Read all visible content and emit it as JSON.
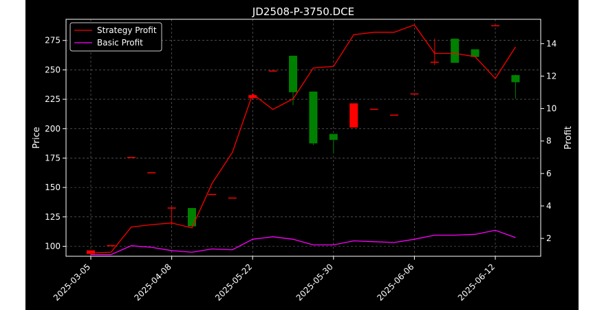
{
  "chart_data": {
    "type": "candlestick",
    "title": "JD2508-P-3750.DCE",
    "ylabel_left": "Price",
    "ylabel_right": "Profit",
    "ylim_left": [
      91.5,
      293
    ],
    "ylim_right": [
      0.9,
      15.5
    ],
    "yticks_left": [
      "100",
      "125",
      "150",
      "175",
      "200",
      "225",
      "250",
      "275"
    ],
    "yticks_right": [
      "2",
      "4",
      "6",
      "8",
      "10",
      "12",
      "14"
    ],
    "xtick_labels": [
      "2025-03-05",
      "2025-04-08",
      "2025-05-22",
      "2025-05-30",
      "2025-06-06",
      "2025-06-12"
    ],
    "xtick_index": [
      0,
      4,
      8,
      12,
      16,
      20
    ],
    "grid": true,
    "legend_position": "top-left",
    "colors": {
      "background": "#000000",
      "up": "#ff0000",
      "down": "#008000",
      "strategy": "#ff0000",
      "basic": "#ff00ff",
      "axes": "#ffffff"
    },
    "candles": [
      {
        "open": 93.5,
        "close": 96.5,
        "low": 92.5,
        "high": 96.5
      },
      {
        "open": 100.5,
        "close": 100.5,
        "low": 100.5,
        "high": 100.5
      },
      {
        "open": 175.5,
        "close": 175.5,
        "low": 175.5,
        "high": 175.5
      },
      {
        "open": 162.5,
        "close": 162.5,
        "low": 162.5,
        "high": 162.5
      },
      {
        "open": 132.5,
        "close": 132.5,
        "low": 118.0,
        "high": 133.0
      },
      {
        "open": 132.5,
        "close": 117.0,
        "low": 117.0,
        "high": 132.5
      },
      {
        "open": 144.0,
        "close": 144.0,
        "low": 144.0,
        "high": 144.0
      },
      {
        "open": 141.0,
        "close": 141.0,
        "low": 141.0,
        "high": 141.0
      },
      {
        "open": 226.0,
        "close": 228.5,
        "low": 226.0,
        "high": 228.5
      },
      {
        "open": 249.0,
        "close": 249.0,
        "low": 249.0,
        "high": 249.0
      },
      {
        "open": 262.0,
        "close": 231.0,
        "low": 220.0,
        "high": 262.0
      },
      {
        "open": 231.5,
        "close": 187.5,
        "low": 186.0,
        "high": 231.5
      },
      {
        "open": 195.5,
        "close": 190.5,
        "low": 179.0,
        "high": 195.5
      },
      {
        "open": 201.0,
        "close": 221.5,
        "low": 201.0,
        "high": 221.5
      },
      {
        "open": 216.5,
        "close": 216.5,
        "low": 216.5,
        "high": 216.5
      },
      {
        "open": 211.5,
        "close": 211.5,
        "low": 211.5,
        "high": 211.5
      },
      {
        "open": 229.5,
        "close": 229.5,
        "low": 229.5,
        "high": 229.5
      },
      {
        "open": 256.5,
        "close": 256.5,
        "low": 254.0,
        "high": 276.5
      },
      {
        "open": 276.5,
        "close": 256.0,
        "low": 256.0,
        "high": 276.5
      },
      {
        "open": 267.5,
        "close": 261.0,
        "low": 261.0,
        "high": 267.5
      },
      {
        "open": 287.5,
        "close": 287.5,
        "low": 287.5,
        "high": 287.5
      },
      {
        "open": 245.5,
        "close": 239.5,
        "low": 225.5,
        "high": 246.0
      }
    ],
    "series": [
      {
        "name": "Strategy Profit",
        "color": "#ff0000",
        "values": [
          1.1,
          1.15,
          2.7,
          2.85,
          2.95,
          2.65,
          5.4,
          7.3,
          10.9,
          9.95,
          10.6,
          12.5,
          12.6,
          14.55,
          14.7,
          14.7,
          15.15,
          13.4,
          13.4,
          13.2,
          11.85,
          13.8
        ]
      },
      {
        "name": "Basic Profit",
        "color": "#ff00ff",
        "values": [
          1.0,
          1.0,
          1.55,
          1.45,
          1.25,
          1.15,
          1.35,
          1.3,
          1.95,
          2.1,
          1.95,
          1.6,
          1.6,
          1.85,
          1.8,
          1.75,
          1.95,
          2.2,
          2.2,
          2.25,
          2.5,
          2.05
        ]
      }
    ]
  }
}
